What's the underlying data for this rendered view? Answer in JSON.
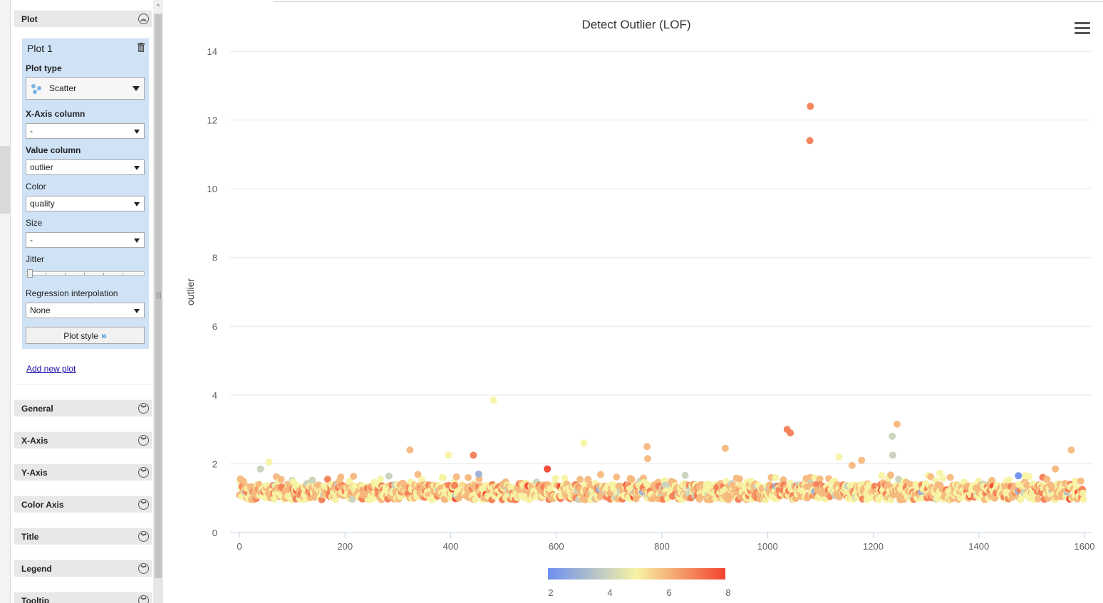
{
  "panel": {
    "plot_section": {
      "label": "Plot"
    },
    "plot1": {
      "title": "Plot 1",
      "plot_type_label": "Plot type",
      "plot_type_value": "Scatter",
      "x_axis_label": "X-Axis column",
      "x_axis_value": "-",
      "value_label": "Value column",
      "value_value": "outlier",
      "color_label": "Color",
      "color_value": "quality",
      "size_label": "Size",
      "size_value": "-",
      "jitter_label": "Jitter",
      "regression_label": "Regression interpolation",
      "regression_value": "None",
      "plot_style_label": "Plot style"
    },
    "add_new_plot": "Add new plot",
    "sections": [
      "General",
      "X-Axis",
      "Y-Axis",
      "Color Axis",
      "Title",
      "Legend",
      "Tooltip"
    ]
  },
  "chart_data": {
    "type": "scatter",
    "title": "Detect Outlier (LOF)",
    "xlabel": "",
    "ylabel": "outlier",
    "xlim": [
      -20,
      1610
    ],
    "ylim": [
      0,
      14
    ],
    "x_ticks": [
      0,
      200,
      400,
      600,
      800,
      1000,
      1200,
      1400,
      1600
    ],
    "y_ticks": [
      0,
      2,
      4,
      6,
      8,
      10,
      12,
      14
    ],
    "grid": true,
    "color_axis": {
      "name": "quality",
      "min": 2,
      "max": 8,
      "ticks": [
        2,
        4,
        6,
        8
      ],
      "colors": [
        "#6d8ff0",
        "#f7f3a4",
        "#f2432f"
      ]
    },
    "n_points": 1599,
    "notable_points": [
      {
        "x": 1081,
        "y": 12.4,
        "c": 7
      },
      {
        "x": 1080,
        "y": 11.4,
        "c": 7
      },
      {
        "x": 481,
        "y": 3.85,
        "c": 5
      },
      {
        "x": 1245,
        "y": 3.15,
        "c": 6
      },
      {
        "x": 1037,
        "y": 3.0,
        "c": 7
      },
      {
        "x": 1043,
        "y": 2.9,
        "c": 7
      },
      {
        "x": 1236,
        "y": 2.8,
        "c": 4
      },
      {
        "x": 652,
        "y": 2.6,
        "c": 5
      },
      {
        "x": 772,
        "y": 2.5,
        "c": 6
      },
      {
        "x": 920,
        "y": 2.45,
        "c": 6
      },
      {
        "x": 1575,
        "y": 2.4,
        "c": 6
      },
      {
        "x": 323,
        "y": 2.4,
        "c": 6
      },
      {
        "x": 443,
        "y": 2.25,
        "c": 7
      },
      {
        "x": 396,
        "y": 2.25,
        "c": 5
      },
      {
        "x": 1237,
        "y": 2.25,
        "c": 4
      },
      {
        "x": 1135,
        "y": 2.2,
        "c": 5
      },
      {
        "x": 773,
        "y": 2.15,
        "c": 6
      },
      {
        "x": 56,
        "y": 2.05,
        "c": 5
      },
      {
        "x": 1178,
        "y": 2.1,
        "c": 6
      },
      {
        "x": 1160,
        "y": 1.95,
        "c": 6
      },
      {
        "x": 583,
        "y": 1.85,
        "c": 8
      },
      {
        "x": 40,
        "y": 1.85,
        "c": 4
      },
      {
        "x": 1545,
        "y": 1.85,
        "c": 6
      },
      {
        "x": 1475,
        "y": 1.65,
        "c": 2
      },
      {
        "x": 453,
        "y": 1.7,
        "c": 3
      }
    ]
  }
}
